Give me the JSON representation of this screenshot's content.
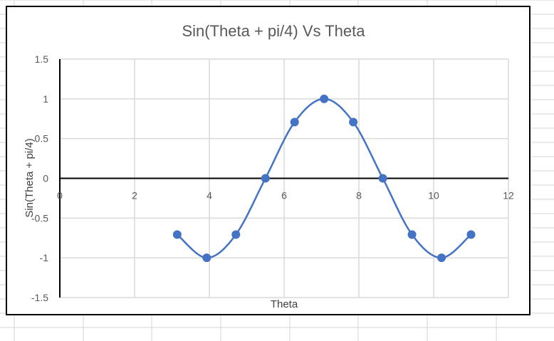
{
  "chart_data": {
    "type": "scatter",
    "title": "Sin(Theta + pi/4) Vs Theta",
    "xlabel": "Theta",
    "ylabel": "Sin(Theta + pi/4)",
    "xlim": [
      0,
      12
    ],
    "ylim": [
      -1.5,
      1.5
    ],
    "xticks": [
      "0",
      "2",
      "4",
      "6",
      "8",
      "10",
      "12"
    ],
    "yticks": [
      "1.5",
      "1",
      "0.5",
      "0",
      "-0.5",
      "-1",
      "-1.5"
    ],
    "grid": true,
    "legend": "none",
    "series": [
      {
        "x": [
          3.14,
          3.93,
          4.71,
          5.5,
          6.28,
          7.07,
          7.85,
          8.64,
          9.42,
          10.21,
          11.0
        ],
        "y": [
          -0.707,
          -1,
          -0.707,
          0,
          0.707,
          1,
          0.707,
          0,
          -0.707,
          -1,
          -0.707
        ],
        "color": "#4472c4",
        "smooth": true
      }
    ]
  }
}
